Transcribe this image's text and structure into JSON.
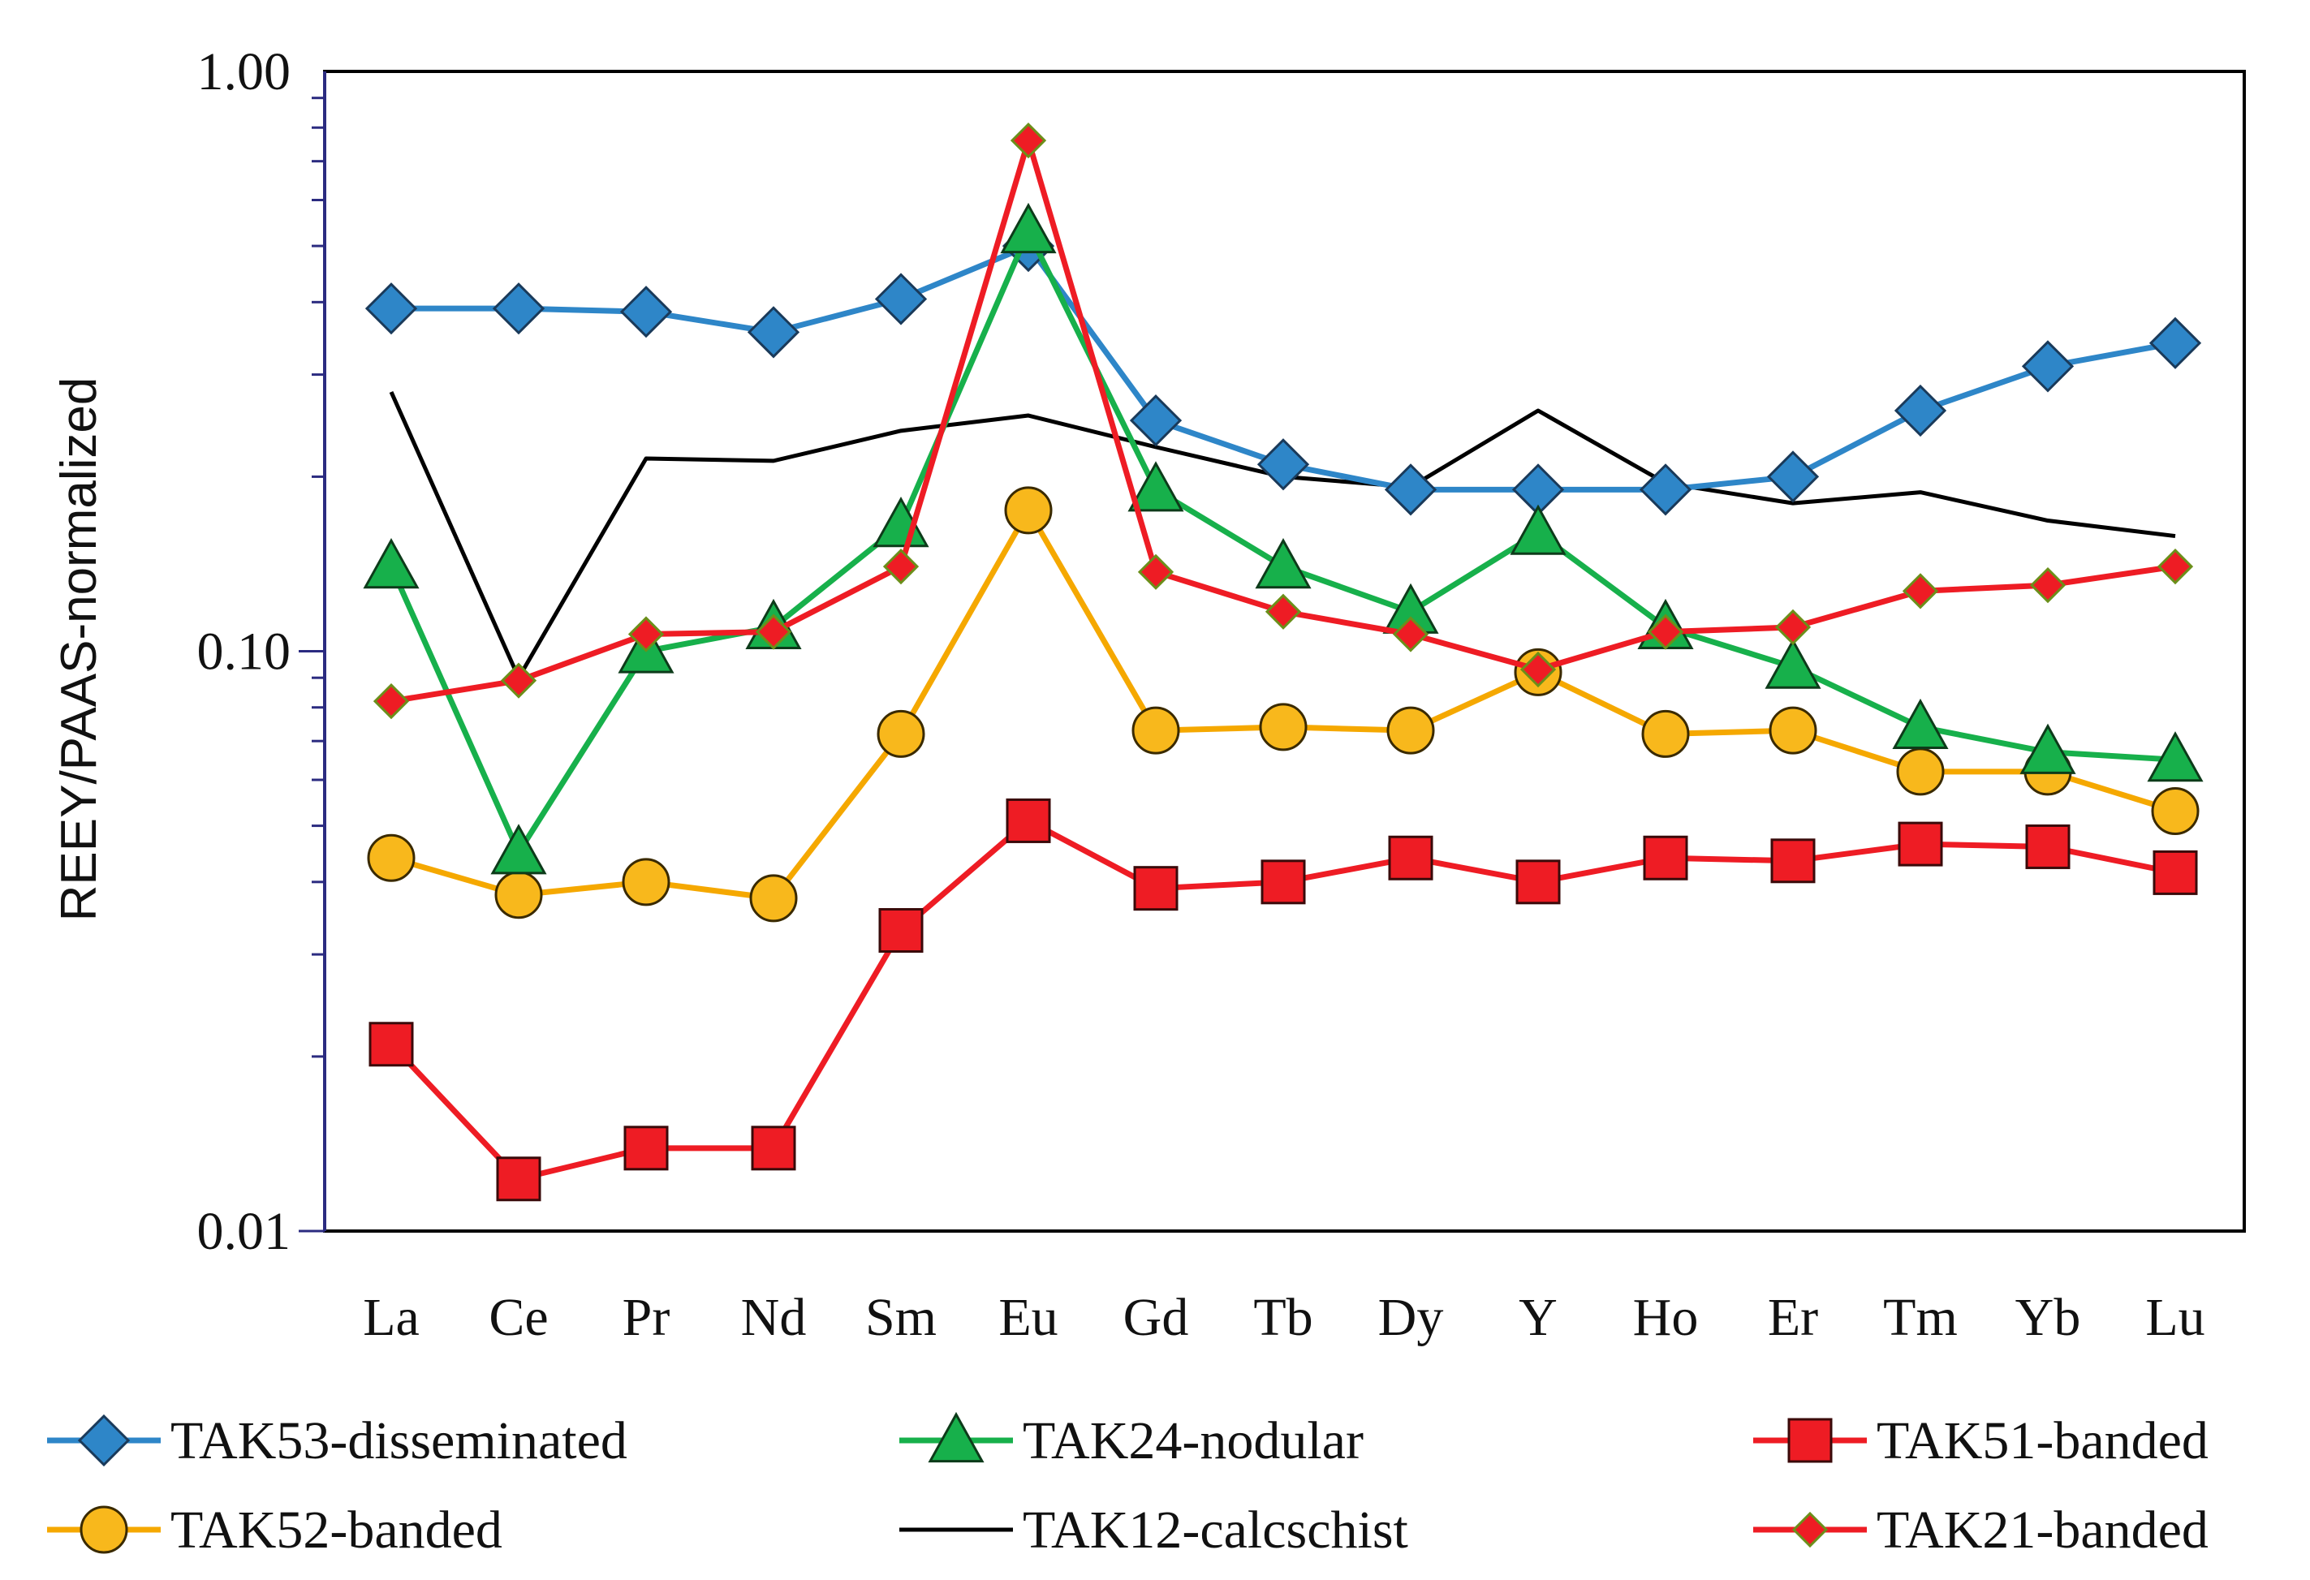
{
  "chart_data": {
    "type": "line",
    "title": "",
    "xlabel": "",
    "ylabel": "REEY/PAAS-normalized",
    "yscale": "log",
    "ylim": [
      0.01,
      1.0
    ],
    "ytick_values": [
      0.01,
      0.1,
      1.0
    ],
    "ytick_labels": [
      "0.01",
      "0.10",
      "1.00"
    ],
    "grid": false,
    "legend_position": "bottom",
    "categories": [
      "La",
      "Ce",
      "Pr",
      "Nd",
      "Sm",
      "Eu",
      "Gd",
      "Tb",
      "Dy",
      "Y",
      "Ho",
      "Er",
      "Tm",
      "Yb",
      "Lu"
    ],
    "series": [
      {
        "name": "TAK53-disseminated",
        "color": "#2e86c8",
        "marker": "diamond",
        "marker_fill": "#2e86c8",
        "values": [
          0.39,
          0.39,
          0.385,
          0.355,
          0.405,
          0.5,
          0.25,
          0.21,
          0.19,
          0.19,
          0.19,
          0.2,
          0.26,
          0.31,
          0.34
        ]
      },
      {
        "name": "TAK24-nodular",
        "color": "#17b04b",
        "marker": "triangle",
        "marker_fill": "#17b04b",
        "values": [
          0.14,
          0.045,
          0.1,
          0.11,
          0.165,
          0.53,
          0.19,
          0.14,
          0.117,
          0.16,
          0.11,
          0.094,
          0.074,
          0.067,
          0.065
        ]
      },
      {
        "name": "TAK51-banded",
        "color": "#ee1c24",
        "marker": "square",
        "marker_fill": "#ee1c24",
        "values": [
          0.021,
          0.0123,
          0.0139,
          0.0139,
          0.033,
          0.051,
          0.039,
          0.04,
          0.044,
          0.04,
          0.044,
          0.0435,
          0.0465,
          0.046,
          0.0415
        ]
      },
      {
        "name": "TAK52-banded",
        "color": "#f5a800",
        "marker": "circle",
        "marker_fill": "#f8b81c",
        "values": [
          0.044,
          0.038,
          0.04,
          0.0375,
          0.072,
          0.175,
          0.073,
          0.074,
          0.073,
          0.092,
          0.072,
          0.073,
          0.062,
          0.062,
          0.053
        ]
      },
      {
        "name": "TAK12-calcschist",
        "color": "#000000",
        "marker": "none",
        "marker_fill": "none",
        "values": [
          0.28,
          0.09,
          0.215,
          0.213,
          0.24,
          0.255,
          0.225,
          0.2,
          0.192,
          0.26,
          0.195,
          0.18,
          0.188,
          0.168,
          0.158
        ]
      },
      {
        "name": "TAK21-banded",
        "color": "#ee1c24",
        "marker": "small-diamond",
        "marker_fill": "#ee1c24",
        "values": [
          0.082,
          0.089,
          0.107,
          0.108,
          0.14,
          0.76,
          0.137,
          0.117,
          0.107,
          0.093,
          0.108,
          0.11,
          0.127,
          0.13,
          0.14
        ]
      }
    ]
  }
}
